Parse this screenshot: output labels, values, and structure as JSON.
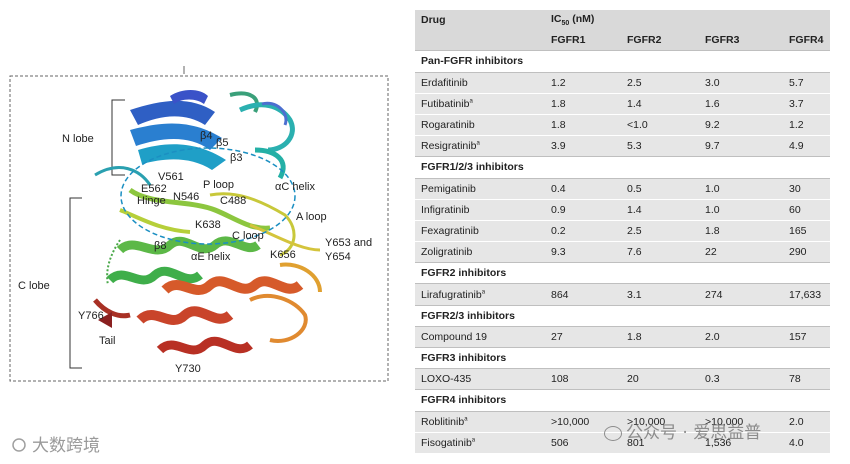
{
  "figure": {
    "labels": {
      "n_lobe": "N  lobe",
      "c_lobe": "C  lobe",
      "b4": "β4",
      "b5": "β5",
      "b3": "β3",
      "v561": "V561",
      "e562": "E562",
      "hinge": "Hinge",
      "n546": "N546",
      "p_loop": "P loop",
      "c488": "C488",
      "ac_helix": "αC helix",
      "a_loop": "A loop",
      "k638": "K638",
      "c_loop": "C loop",
      "b8": "β8",
      "ae_helix": "αE helix",
      "k656": "K656",
      "y653_line1": "Y653 and",
      "y653_line2": "Y654",
      "y766": "Y766",
      "tail": "Tail",
      "y730": "Y730"
    },
    "watermark": "大数跨境"
  },
  "table": {
    "headers": {
      "drug": "Drug",
      "ic50": "IC",
      "ic50_sub": "50",
      "ic50_unit": " (nM)",
      "columns": [
        "FGFR1",
        "FGFR2",
        "FGFR3",
        "FGFR4"
      ]
    },
    "groups": [
      {
        "name": "Pan-FGFR inhibitors",
        "rows": [
          {
            "drug": "Erdafitinib",
            "sup": "",
            "values": [
              "1.2",
              "2.5",
              "3.0",
              "5.7"
            ]
          },
          {
            "drug": "Futibatinib",
            "sup": "a",
            "values": [
              "1.8",
              "1.4",
              "1.6",
              "3.7"
            ]
          },
          {
            "drug": "Rogaratinib",
            "sup": "",
            "values": [
              "1.8",
              "<1.0",
              "9.2",
              "1.2"
            ]
          },
          {
            "drug": "Resigratinib",
            "sup": "a",
            "values": [
              "3.9",
              "5.3",
              "9.7",
              "4.9"
            ]
          }
        ]
      },
      {
        "name": "FGFR1/2/3 inhibitors",
        "rows": [
          {
            "drug": "Pemigatinib",
            "sup": "",
            "values": [
              "0.4",
              "0.5",
              "1.0",
              "30"
            ]
          },
          {
            "drug": "Infigratinib",
            "sup": "",
            "values": [
              "0.9",
              "1.4",
              "1.0",
              "60"
            ]
          },
          {
            "drug": "Fexagratinib",
            "sup": "",
            "values": [
              "0.2",
              "2.5",
              "1.8",
              "165"
            ]
          },
          {
            "drug": "Zoligratinib",
            "sup": "",
            "values": [
              "9.3",
              "7.6",
              "22",
              "290"
            ]
          }
        ]
      },
      {
        "name": "FGFR2 inhibitors",
        "rows": [
          {
            "drug": "Lirafugratinib",
            "sup": "a",
            "values": [
              "864",
              "3.1",
              "274",
              "17,633"
            ]
          }
        ]
      },
      {
        "name": "FGFR2/3 inhibitors",
        "rows": [
          {
            "drug": "Compound 19",
            "sup": "",
            "values": [
              "27",
              "1.8",
              "2.0",
              "157"
            ]
          }
        ]
      },
      {
        "name": "FGFR3 inhibitors",
        "rows": [
          {
            "drug": "LOXO-435",
            "sup": "",
            "values": [
              "108",
              "20",
              "0.3",
              "78"
            ]
          }
        ]
      },
      {
        "name": "FGFR4 inhibitors",
        "rows": [
          {
            "drug": "Roblitinib",
            "sup": "a",
            "values": [
              ">10,000",
              ">10,000",
              ">10,000",
              "2.0"
            ]
          },
          {
            "drug": "Fisogatinib",
            "sup": "a",
            "values": [
              "506",
              "801",
              "1,536",
              "4.0"
            ]
          }
        ]
      }
    ],
    "watermark": "公众号 · 爱思益普"
  }
}
